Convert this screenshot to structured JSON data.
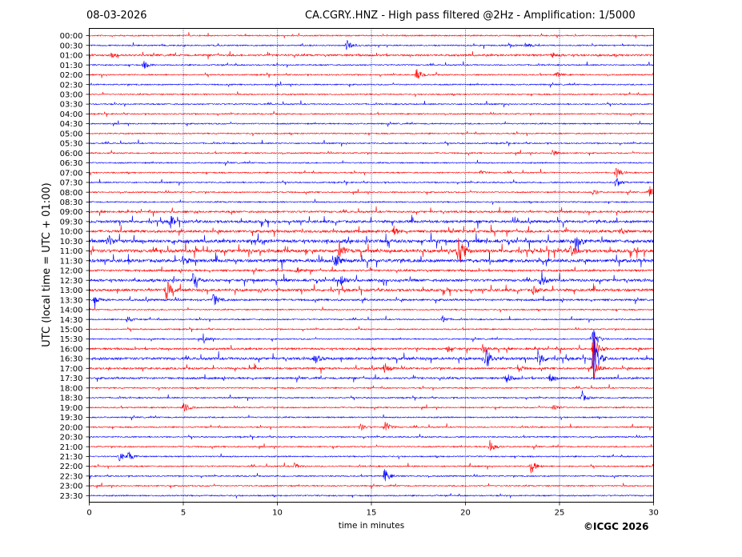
{
  "header": {
    "date": "08-03-2026",
    "title": "CA.CGRY..HNZ - High pass filtered @2Hz - Amplification: 1/5000"
  },
  "footer": {
    "copyright": "©ICGC 2026"
  },
  "colors": {
    "trace_a": "#ff0000",
    "trace_b": "#0000ff",
    "axis": "#000000",
    "gridline": "#000080"
  },
  "chart_data": {
    "type": "line",
    "chart_kind": "helicorder",
    "xlabel": "time in minutes",
    "ylabel": "UTC (local time = UTC + 01:00)",
    "xlim": [
      0,
      30
    ],
    "x_ticks": [
      0,
      5,
      10,
      15,
      20,
      25,
      30
    ],
    "x_tick_labels": [
      "0",
      "5",
      "10",
      "15",
      "20",
      "25",
      "30"
    ],
    "vertical_gridlines": [
      5,
      10,
      15,
      20,
      25
    ],
    "grid": "dotted vertical",
    "row_labels": [
      "00:00",
      "00:30",
      "01:00",
      "01:30",
      "02:00",
      "02:30",
      "03:00",
      "03:30",
      "04:00",
      "04:30",
      "05:00",
      "05:30",
      "06:00",
      "06:30",
      "07:00",
      "07:30",
      "08:00",
      "08:30",
      "09:00",
      "09:30",
      "10:00",
      "10:30",
      "11:00",
      "11:30",
      "12:00",
      "12:30",
      "13:00",
      "13:30",
      "14:00",
      "14:30",
      "15:00",
      "15:30",
      "16:00",
      "16:30",
      "17:00",
      "17:30",
      "18:00",
      "18:30",
      "19:00",
      "19:30",
      "20:00",
      "20:30",
      "21:00",
      "21:30",
      "22:00",
      "22:30",
      "23:00",
      "23:30"
    ],
    "row_colors": [
      "red",
      "blue"
    ],
    "noise_level": [
      1,
      1,
      2,
      1,
      1,
      1,
      1,
      1,
      1,
      1,
      1,
      1,
      1,
      1,
      1,
      1,
      1,
      1,
      2,
      3,
      3,
      4,
      4,
      4,
      2,
      3,
      3,
      2,
      1,
      1,
      1,
      1,
      2,
      3,
      2,
      2,
      1,
      1,
      1,
      1,
      1,
      1,
      1,
      1,
      1,
      1,
      1,
      1
    ],
    "events": [
      {
        "row": "00:30",
        "minute": 13.7,
        "amplitude": 0.6
      },
      {
        "row": "00:30",
        "minute": 22.3,
        "amplitude": 0.3
      },
      {
        "row": "00:30",
        "minute": 23.2,
        "amplitude": 0.3
      },
      {
        "row": "01:00",
        "minute": 1.2,
        "amplitude": 0.3
      },
      {
        "row": "01:00",
        "minute": 24.6,
        "amplitude": 0.3
      },
      {
        "row": "01:30",
        "minute": 2.9,
        "amplitude": 0.4
      },
      {
        "row": "02:00",
        "minute": 17.4,
        "amplitude": 0.6
      },
      {
        "row": "02:00",
        "minute": 24.8,
        "amplitude": 0.3
      },
      {
        "row": "06:00",
        "minute": 24.6,
        "amplitude": 0.4
      },
      {
        "row": "07:00",
        "minute": 20.8,
        "amplitude": 0.2
      },
      {
        "row": "07:00",
        "minute": 28.0,
        "amplitude": 0.6
      },
      {
        "row": "07:30",
        "minute": 28.0,
        "amplitude": 0.6
      },
      {
        "row": "08:00",
        "minute": 29.8,
        "amplitude": 0.6
      },
      {
        "row": "08:00",
        "minute": 26.8,
        "amplitude": 0.3
      },
      {
        "row": "09:30",
        "minute": 4.3,
        "amplitude": 0.7
      },
      {
        "row": "10:00",
        "minute": 16.2,
        "amplitude": 0.5
      },
      {
        "row": "10:00",
        "minute": 28.2,
        "amplitude": 0.4
      },
      {
        "row": "10:30",
        "minute": 1.0,
        "amplitude": 0.7
      },
      {
        "row": "10:30",
        "minute": 25.9,
        "amplitude": 0.9
      },
      {
        "row": "11:00",
        "minute": 13.3,
        "amplitude": 0.9
      },
      {
        "row": "11:00",
        "minute": 19.6,
        "amplitude": 2.6
      },
      {
        "row": "11:00",
        "minute": 25.6,
        "amplitude": 0.6
      },
      {
        "row": "11:30",
        "minute": 13.1,
        "amplitude": 0.7
      },
      {
        "row": "11:30",
        "minute": 5.0,
        "amplitude": 0.5
      },
      {
        "row": "12:00",
        "minute": 11.0,
        "amplitude": 0.4
      },
      {
        "row": "12:30",
        "minute": 5.5,
        "amplitude": 0.7
      },
      {
        "row": "12:30",
        "minute": 13.4,
        "amplitude": 0.6
      },
      {
        "row": "12:30",
        "minute": 24.0,
        "amplitude": 0.8
      },
      {
        "row": "13:00",
        "minute": 4.1,
        "amplitude": 1.2
      },
      {
        "row": "13:00",
        "minute": 23.6,
        "amplitude": 0.4
      },
      {
        "row": "13:30",
        "minute": 6.6,
        "amplitude": 0.7
      },
      {
        "row": "13:30",
        "minute": 0.3,
        "amplitude": 0.4
      },
      {
        "row": "14:30",
        "minute": 2.0,
        "amplitude": 0.4
      },
      {
        "row": "14:30",
        "minute": 18.8,
        "amplitude": 0.4
      },
      {
        "row": "15:30",
        "minute": 6.1,
        "amplitude": 0.4
      },
      {
        "row": "15:30",
        "minute": 26.8,
        "amplitude": 1.3
      },
      {
        "row": "16:00",
        "minute": 19.0,
        "amplitude": 0.4
      },
      {
        "row": "16:00",
        "minute": 20.9,
        "amplitude": 0.5
      },
      {
        "row": "16:00",
        "minute": 26.8,
        "amplitude": 1.5
      },
      {
        "row": "16:30",
        "minute": 21.1,
        "amplitude": 1.3
      },
      {
        "row": "16:30",
        "minute": 23.9,
        "amplitude": 1.0
      },
      {
        "row": "16:30",
        "minute": 26.8,
        "amplitude": 2.6
      },
      {
        "row": "16:30",
        "minute": 12.0,
        "amplitude": 0.5
      },
      {
        "row": "17:00",
        "minute": 15.7,
        "amplitude": 0.6
      },
      {
        "row": "17:00",
        "minute": 22.8,
        "amplitude": 0.4
      },
      {
        "row": "17:00",
        "minute": 26.8,
        "amplitude": 1.2
      },
      {
        "row": "17:30",
        "minute": 22.2,
        "amplitude": 0.5
      },
      {
        "row": "17:30",
        "minute": 24.5,
        "amplitude": 0.6
      },
      {
        "row": "18:30",
        "minute": 26.2,
        "amplitude": 0.5
      },
      {
        "row": "19:00",
        "minute": 5.0,
        "amplitude": 0.7
      },
      {
        "row": "19:00",
        "minute": 24.7,
        "amplitude": 0.4
      },
      {
        "row": "20:00",
        "minute": 15.7,
        "amplitude": 0.7
      },
      {
        "row": "20:00",
        "minute": 14.4,
        "amplitude": 0.4
      },
      {
        "row": "21:00",
        "minute": 21.3,
        "amplitude": 0.7
      },
      {
        "row": "21:30",
        "minute": 1.6,
        "amplitude": 0.5
      },
      {
        "row": "21:30",
        "minute": 2.1,
        "amplitude": 0.5
      },
      {
        "row": "22:00",
        "minute": 23.5,
        "amplitude": 0.8
      },
      {
        "row": "22:00",
        "minute": 10.9,
        "amplitude": 0.3
      },
      {
        "row": "22:30",
        "minute": 15.7,
        "amplitude": 0.8
      }
    ]
  }
}
